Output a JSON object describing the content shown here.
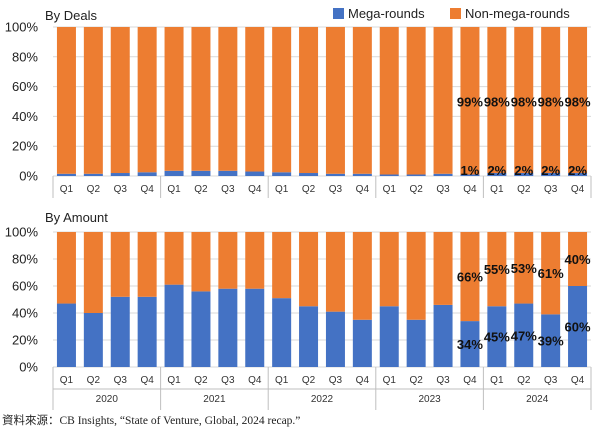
{
  "colors": {
    "mega": "#4472C4",
    "non_mega": "#ED7D31",
    "grid": "#d9d9d9",
    "axis_text": "#333333",
    "label_text": "#111111"
  },
  "legend": {
    "mega": "Mega-rounds",
    "non_mega": "Non-mega-rounds"
  },
  "source": "資料來源：CB Insights, “State of Venture, Global, 2024 recap.”",
  "chart_data": [
    {
      "type": "bar",
      "stacked": "percent",
      "title": "By Deals",
      "ylim": [
        0,
        100
      ],
      "yticks": [
        "0%",
        "20%",
        "40%",
        "60%",
        "80%",
        "100%"
      ],
      "categories": [
        "Q1",
        "Q2",
        "Q3",
        "Q4",
        "Q1",
        "Q2",
        "Q3",
        "Q4",
        "Q1",
        "Q2",
        "Q3",
        "Q4",
        "Q1",
        "Q2",
        "Q3",
        "Q4",
        "Q1",
        "Q2",
        "Q3",
        "Q4"
      ],
      "series": [
        {
          "name": "Mega-rounds",
          "values": [
            1.5,
            1.5,
            2,
            2.5,
            3.5,
            3.5,
            3.5,
            3,
            2.5,
            2,
            1.5,
            1.5,
            1,
            1,
            1.5,
            1,
            2,
            2,
            2,
            2
          ]
        },
        {
          "name": "Non-mega-rounds",
          "values": [
            98.5,
            98.5,
            98,
            97.5,
            96.5,
            96.5,
            96.5,
            97,
            97.5,
            98,
            98.5,
            98.5,
            99,
            99,
            98.5,
            99,
            98,
            98,
            98,
            98
          ]
        }
      ],
      "data_labels": {
        "mega": [
          "",
          "",
          "",
          "",
          "",
          "",
          "",
          "",
          "",
          "",
          "",
          "",
          "",
          "",
          "",
          "1%",
          "2%",
          "2%",
          "2%",
          "2%"
        ],
        "non_mega": [
          "",
          "",
          "",
          "",
          "",
          "",
          "",
          "",
          "",
          "",
          "",
          "",
          "",
          "",
          "",
          "99%",
          "98%",
          "98%",
          "98%",
          "98%"
        ]
      }
    },
    {
      "type": "bar",
      "stacked": "percent",
      "title": "By Amount",
      "ylim": [
        0,
        100
      ],
      "yticks": [
        "0%",
        "20%",
        "40%",
        "60%",
        "80%",
        "100%"
      ],
      "categories": [
        "Q1",
        "Q2",
        "Q3",
        "Q4",
        "Q1",
        "Q2",
        "Q3",
        "Q4",
        "Q1",
        "Q2",
        "Q3",
        "Q4",
        "Q1",
        "Q2",
        "Q3",
        "Q4",
        "Q1",
        "Q2",
        "Q3",
        "Q4"
      ],
      "years": [
        "2020",
        "2021",
        "2022",
        "2023",
        "2024"
      ],
      "series": [
        {
          "name": "Mega-rounds",
          "values": [
            47,
            40,
            52,
            52,
            61,
            56,
            58,
            58,
            51,
            45,
            41,
            35,
            45,
            35,
            46,
            34,
            45,
            47,
            39,
            60
          ]
        },
        {
          "name": "Non-mega-rounds",
          "values": [
            53,
            60,
            48,
            48,
            39,
            44,
            42,
            42,
            49,
            55,
            59,
            65,
            55,
            65,
            54,
            66,
            55,
            53,
            61,
            40
          ]
        }
      ],
      "data_labels": {
        "mega": [
          "",
          "",
          "",
          "",
          "",
          "",
          "",
          "",
          "",
          "",
          "",
          "",
          "",
          "",
          "",
          "34%",
          "45%",
          "47%",
          "39%",
          "60%"
        ],
        "non_mega": [
          "",
          "",
          "",
          "",
          "",
          "",
          "",
          "",
          "",
          "",
          "",
          "",
          "",
          "",
          "",
          "66%",
          "55%",
          "53%",
          "61%",
          "40%"
        ]
      }
    }
  ]
}
